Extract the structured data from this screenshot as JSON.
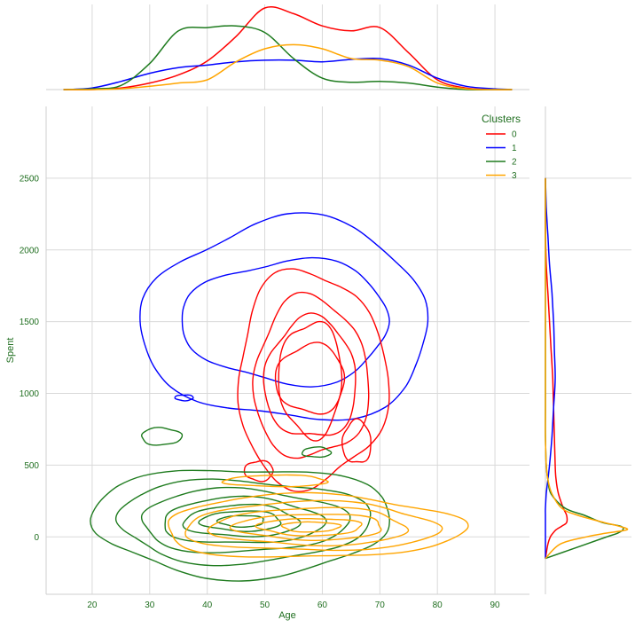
{
  "chart_data": {
    "type": "jointplot-kde",
    "xlabel": "Age",
    "ylabel": "Spent",
    "xlim": [
      12,
      96
    ],
    "ylim": [
      -400,
      3000
    ],
    "xticks": [
      "20",
      "30",
      "40",
      "50",
      "60",
      "70",
      "80",
      "90"
    ],
    "xtick_values": [
      20,
      30,
      40,
      50,
      60,
      70,
      80,
      90
    ],
    "yticks": [
      "0",
      "500",
      "1000",
      "1500",
      "2000",
      "2500"
    ],
    "ytick_values": [
      0,
      500,
      1000,
      1500,
      2000,
      2500
    ],
    "grid": true,
    "legend": {
      "title": "Clusters",
      "placement": "top-right",
      "entries": [
        "0",
        "1",
        "2",
        "3"
      ]
    },
    "colors": {
      "0": "#ff0000",
      "1": "#0000ff",
      "2": "#1e7b1e",
      "3": "#ffa500",
      "text": "#1f6e1f"
    },
    "marginal_x": {
      "x": [
        15,
        20,
        25,
        30,
        35,
        40,
        45,
        50,
        55,
        60,
        65,
        70,
        75,
        80,
        85,
        90,
        93
      ],
      "series": [
        {
          "cluster": "0",
          "density": [
            0,
            0,
            0.02,
            0.08,
            0.18,
            0.35,
            0.65,
            1.0,
            0.93,
            0.78,
            0.72,
            0.76,
            0.45,
            0.12,
            0.02,
            0,
            0
          ]
        },
        {
          "cluster": "1",
          "density": [
            0,
            0.02,
            0.1,
            0.2,
            0.27,
            0.3,
            0.34,
            0.36,
            0.36,
            0.34,
            0.37,
            0.38,
            0.3,
            0.14,
            0.04,
            0.01,
            0
          ]
        },
        {
          "cluster": "2",
          "density": [
            0,
            0.01,
            0.05,
            0.32,
            0.72,
            0.76,
            0.78,
            0.7,
            0.38,
            0.14,
            0.09,
            0.1,
            0.08,
            0.03,
            0,
            0,
            0
          ]
        },
        {
          "cluster": "3",
          "density": [
            0,
            0,
            0.01,
            0.04,
            0.08,
            0.12,
            0.34,
            0.5,
            0.55,
            0.5,
            0.38,
            0.36,
            0.28,
            0.08,
            0.01,
            0,
            0
          ]
        }
      ]
    },
    "marginal_y": {
      "y": [
        -150,
        -50,
        0,
        25,
        50,
        75,
        100,
        150,
        200,
        300,
        400,
        500,
        700,
        900,
        1100,
        1300,
        1500,
        1700,
        1900,
        2100,
        2300,
        2500
      ],
      "series": [
        {
          "cluster": "0",
          "density": [
            0,
            0.03,
            0.06,
            0.09,
            0.13,
            0.2,
            0.26,
            0.26,
            0.22,
            0.16,
            0.13,
            0.12,
            0.11,
            0.1,
            0.09,
            0.07,
            0.05,
            0.03,
            0.01,
            0,
            0,
            0
          ]
        },
        {
          "cluster": "1",
          "density": [
            0,
            0,
            0,
            0,
            0,
            0,
            0,
            0,
            0,
            0.01,
            0.03,
            0.05,
            0.08,
            0.1,
            0.12,
            0.11,
            0.1,
            0.08,
            0.05,
            0.03,
            0.01,
            0
          ]
        },
        {
          "cluster": "2",
          "density": [
            0,
            0.5,
            0.75,
            0.88,
            0.95,
            0.92,
            0.7,
            0.48,
            0.24,
            0.07,
            0.03,
            0.01,
            0,
            0,
            0,
            0,
            0,
            0,
            0,
            0,
            0,
            0
          ]
        },
        {
          "cluster": "3",
          "density": [
            0,
            0.18,
            0.5,
            0.73,
            1.0,
            0.9,
            0.72,
            0.4,
            0.2,
            0.08,
            0.03,
            0.01,
            0,
            0,
            0,
            0,
            0,
            0,
            0,
            0,
            0,
            0
          ]
        }
      ]
    },
    "contours": [
      {
        "cluster": "1",
        "center": [
          54,
          1500
        ],
        "radii": [
          [
            25,
            700
          ],
          [
            18,
            430
          ]
        ]
      },
      {
        "cluster": "1",
        "center": [
          36,
          970
        ],
        "radii": [
          [
            1.6,
            20
          ]
        ]
      },
      {
        "cluster": "0",
        "center": [
          58,
          1100
        ],
        "radii": [
          [
            13,
            750
          ],
          [
            10,
            560
          ],
          [
            8,
            420
          ],
          [
            6,
            240
          ],
          [
            5.5,
            400
          ]
        ]
      },
      {
        "cluster": "0",
        "center": [
          66,
          660
        ],
        "radii": [
          [
            2.5,
            150
          ]
        ]
      },
      {
        "cluster": "0",
        "center": [
          49,
          460
        ],
        "radii": [
          [
            2.5,
            70
          ]
        ]
      },
      {
        "cluster": "2",
        "center": [
          46,
          110
        ],
        "radii": [
          [
            26,
            380
          ],
          [
            22,
            290
          ],
          [
            18,
            220
          ],
          [
            14,
            160
          ],
          [
            10,
            110
          ],
          [
            7,
            70
          ],
          [
            4,
            40
          ]
        ]
      },
      {
        "cluster": "2",
        "center": [
          32,
          700
        ],
        "radii": [
          [
            3.5,
            60
          ]
        ]
      },
      {
        "cluster": "2",
        "center": [
          59,
          590
        ],
        "radii": [
          [
            2.5,
            35
          ]
        ]
      },
      {
        "cluster": "3",
        "center": [
          58,
          70
        ],
        "radii": [
          [
            26,
            220
          ],
          [
            22,
            170
          ],
          [
            17,
            130
          ],
          [
            13,
            90
          ],
          [
            9,
            60
          ],
          [
            5,
            35
          ]
        ]
      },
      {
        "cluster": "3",
        "center": [
          52,
          390
        ],
        "radii": [
          [
            9,
            40
          ]
        ]
      }
    ]
  }
}
